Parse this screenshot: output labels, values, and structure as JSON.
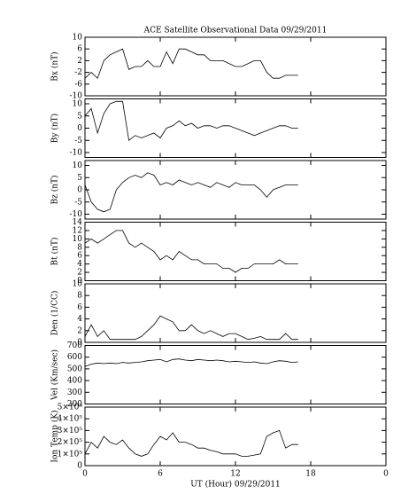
{
  "chart_data": [
    {
      "type": "line",
      "title": "ACE Satellite Observational Data   09/29/2011",
      "ylabel": "Bx (nT)",
      "color": "#000000",
      "x": [
        0,
        0.5,
        1,
        1.5,
        2,
        2.5,
        3,
        3.5,
        4,
        4.5,
        5,
        5.5,
        6,
        6.5,
        7,
        7.5,
        8,
        8.5,
        9,
        9.5,
        10,
        10.5,
        11,
        11.5,
        12,
        12.5,
        13,
        13.5,
        14,
        14.5,
        15,
        15.5,
        16,
        16.5,
        17
      ],
      "values": [
        -4,
        -2,
        -4,
        2,
        4,
        5,
        6,
        -1,
        0,
        0,
        2,
        0,
        0,
        5,
        1,
        6,
        6,
        5,
        4,
        4,
        2,
        2,
        2,
        1,
        0,
        0,
        1,
        2,
        2,
        -2,
        -4,
        -4,
        -3,
        -3,
        -3
      ],
      "xlim": [
        0,
        24
      ],
      "xticks": [
        0,
        6,
        12,
        18,
        {
          "value": 24,
          "label": "0"
        }
      ],
      "ylim": [
        -10,
        10
      ],
      "yticks": [
        -10,
        -6,
        -2,
        2,
        6,
        10
      ]
    },
    {
      "type": "line",
      "ylabel": "By (nT)",
      "color": "#000000",
      "x": [
        0,
        0.5,
        1,
        1.5,
        2,
        2.5,
        3,
        3.5,
        4,
        4.5,
        5,
        5.5,
        6,
        6.5,
        7,
        7.5,
        8,
        8.5,
        9,
        9.5,
        10,
        10.5,
        11,
        11.5,
        12,
        12.5,
        13,
        13.5,
        14,
        14.5,
        15,
        15.5,
        16,
        16.5,
        17
      ],
      "values": [
        5,
        8,
        -2,
        6,
        10,
        11,
        11,
        -5,
        -3,
        -4,
        -3,
        -2,
        -4,
        0,
        1,
        3,
        1,
        2,
        0,
        1,
        1,
        0,
        1,
        1,
        0,
        -1,
        -2,
        -3,
        -2,
        -1,
        0,
        1,
        1,
        0,
        0
      ],
      "xlim": [
        0,
        24
      ],
      "xticks": [
        0,
        6,
        12,
        18,
        {
          "value": 24,
          "label": "0"
        }
      ],
      "ylim": [
        -12,
        12
      ],
      "yticks": [
        -10,
        -5,
        0,
        5,
        10
      ]
    },
    {
      "type": "line",
      "ylabel": "Bz (nT)",
      "color": "#000000",
      "x": [
        0,
        0.5,
        1,
        1.5,
        2,
        2.5,
        3,
        3.5,
        4,
        4.5,
        5,
        5.5,
        6,
        6.5,
        7,
        7.5,
        8,
        8.5,
        9,
        9.5,
        10,
        10.5,
        11,
        11.5,
        12,
        12.5,
        13,
        13.5,
        14,
        14.5,
        15,
        15.5,
        16,
        16.5,
        17
      ],
      "values": [
        2,
        -5,
        -8,
        -9,
        -8,
        0,
        3,
        5,
        6,
        5,
        7,
        6,
        2,
        3,
        2,
        4,
        3,
        2,
        3,
        2,
        1,
        3,
        2,
        1,
        3,
        2,
        2,
        2,
        0,
        -3,
        0,
        1,
        2,
        2,
        2
      ],
      "xlim": [
        0,
        24
      ],
      "xticks": [
        0,
        6,
        12,
        18,
        {
          "value": 24,
          "label": "0"
        }
      ],
      "ylim": [
        -12,
        12
      ],
      "yticks": [
        -10,
        -5,
        0,
        5,
        10
      ]
    },
    {
      "type": "line",
      "ylabel": "Bt (nT)",
      "color": "#000000",
      "x": [
        0,
        0.5,
        1,
        1.5,
        2,
        2.5,
        3,
        3.5,
        4,
        4.5,
        5,
        5.5,
        6,
        6.5,
        7,
        7.5,
        8,
        8.5,
        9,
        9.5,
        10,
        10.5,
        11,
        11.5,
        12,
        12.5,
        13,
        13.5,
        14,
        14.5,
        15,
        15.5,
        16,
        16.5,
        17
      ],
      "values": [
        9,
        10,
        9,
        10,
        11,
        12,
        12,
        9,
        8,
        9,
        8,
        7,
        5,
        6,
        5,
        7,
        6,
        5,
        5,
        4,
        4,
        4,
        3,
        3,
        2,
        3,
        3,
        4,
        4,
        4,
        4,
        5,
        4,
        4,
        4
      ],
      "xlim": [
        0,
        24
      ],
      "xticks": [
        0,
        6,
        12,
        18,
        {
          "value": 24,
          "label": "0"
        }
      ],
      "ylim": [
        0,
        14
      ],
      "yticks": [
        0,
        2,
        4,
        6,
        8,
        10,
        12,
        14
      ]
    },
    {
      "type": "line",
      "ylabel": "Den (1/CC)",
      "color": "#000000",
      "x": [
        0,
        0.5,
        1,
        1.5,
        2,
        2.5,
        3,
        3.5,
        4,
        4.5,
        5,
        5.5,
        6,
        6.5,
        7,
        7.5,
        8,
        8.5,
        9,
        9.5,
        10,
        10.5,
        11,
        11.5,
        12,
        12.5,
        13,
        13.5,
        14,
        14.5,
        15,
        15.5,
        16,
        16.5,
        17
      ],
      "values": [
        1,
        3,
        1,
        2,
        0.5,
        0.5,
        0.5,
        0.5,
        0.5,
        1,
        2,
        3,
        4.5,
        4,
        3.5,
        2,
        2,
        3,
        2,
        1.5,
        2,
        1.5,
        1,
        1.5,
        1.5,
        1,
        0.5,
        0.7,
        1,
        0.5,
        0.5,
        0.5,
        1.5,
        0.5,
        0.5
      ],
      "xlim": [
        0,
        24
      ],
      "xticks": [
        0,
        6,
        12,
        18,
        {
          "value": 24,
          "label": "0"
        }
      ],
      "ylim": [
        0,
        10
      ],
      "yticks": [
        0,
        2,
        4,
        6,
        8,
        10
      ]
    },
    {
      "type": "line",
      "ylabel": "Vel (Km/sec)",
      "color": "#000000",
      "x": [
        0,
        0.5,
        1,
        1.5,
        2,
        2.5,
        3,
        3.5,
        4,
        4.5,
        5,
        5.5,
        6,
        6.5,
        7,
        7.5,
        8,
        8.5,
        9,
        9.5,
        10,
        10.5,
        11,
        11.5,
        12,
        12.5,
        13,
        13.5,
        14,
        14.5,
        15,
        15.5,
        16,
        16.5,
        17
      ],
      "values": [
        520,
        540,
        550,
        545,
        550,
        545,
        555,
        550,
        555,
        560,
        570,
        575,
        580,
        560,
        580,
        585,
        575,
        570,
        580,
        575,
        570,
        575,
        570,
        560,
        565,
        560,
        555,
        560,
        550,
        545,
        560,
        570,
        565,
        555,
        560
      ],
      "xlim": [
        0,
        24
      ],
      "xticks": [
        0,
        6,
        12,
        18,
        {
          "value": 24,
          "label": "0"
        }
      ],
      "ylim": [
        200,
        700
      ],
      "yticks": [
        200,
        300,
        400,
        500,
        600,
        700
      ]
    },
    {
      "type": "line",
      "ylabel": "Ion Temp (K)",
      "xlabel": "UT (Hour)  09/29/2011",
      "color": "#000000",
      "x": [
        0,
        0.5,
        1,
        1.5,
        2,
        2.5,
        3,
        3.5,
        4,
        4.5,
        5,
        5.5,
        6,
        6.5,
        7,
        7.5,
        8,
        8.5,
        9,
        9.5,
        10,
        10.5,
        11,
        11.5,
        12,
        12.5,
        13,
        13.5,
        14,
        14.5,
        15,
        15.5,
        16,
        16.5,
        17
      ],
      "values": [
        100000,
        200000,
        150000,
        250000,
        200000,
        180000,
        220000,
        150000,
        100000,
        80000,
        100000,
        180000,
        250000,
        220000,
        280000,
        200000,
        200000,
        180000,
        150000,
        150000,
        130000,
        120000,
        100000,
        100000,
        100000,
        80000,
        80000,
        90000,
        100000,
        250000,
        280000,
        300000,
        150000,
        180000,
        180000
      ],
      "xlim": [
        0,
        24
      ],
      "xticks": [
        0,
        6,
        12,
        18,
        {
          "value": 24,
          "label": "0"
        }
      ],
      "ylim": [
        0,
        500000
      ],
      "yticks": [
        0,
        {
          "value": 100000,
          "label": "1×10⁵"
        },
        {
          "value": 200000,
          "label": "2×10⁵"
        },
        {
          "value": 300000,
          "label": "3×10⁵"
        },
        {
          "value": 400000,
          "label": "4×10⁵"
        },
        {
          "value": 500000,
          "label": "5×10⁵"
        }
      ]
    }
  ]
}
